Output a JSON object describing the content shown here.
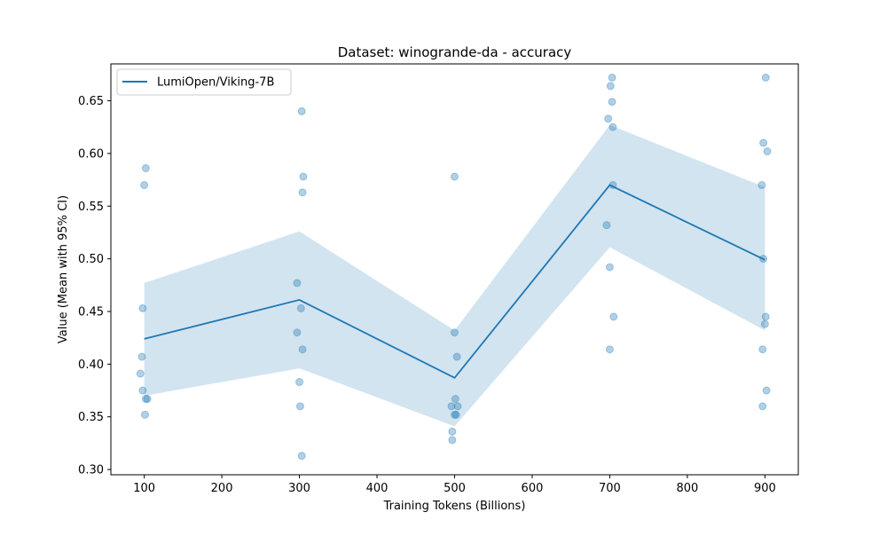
{
  "chart_data": {
    "type": "line",
    "title": "Dataset: winogrande-da - accuracy",
    "xlabel": "Training Tokens (Billions)",
    "ylabel": "Value (Mean with 95% CI)",
    "xlim": [
      57,
      943
    ],
    "ylim": [
      0.295,
      0.685
    ],
    "xticks": [
      100,
      200,
      300,
      400,
      500,
      600,
      700,
      800,
      900
    ],
    "yticks": [
      0.3,
      0.35,
      0.4,
      0.45,
      0.5,
      0.55,
      0.6,
      0.65
    ],
    "legend_position": "top-left",
    "grid": false,
    "colors": {
      "line": "#1f77b4",
      "band": "#1f77b4",
      "points": "#1f77b4"
    },
    "series": [
      {
        "name": "LumiOpen/Viking-7B",
        "x": [
          100,
          300,
          500,
          700,
          900
        ],
        "mean": [
          0.424,
          0.461,
          0.387,
          0.57,
          0.499
        ],
        "ci_low": [
          0.37,
          0.396,
          0.341,
          0.511,
          0.432
        ],
        "ci_high": [
          0.477,
          0.526,
          0.432,
          0.627,
          0.568
        ]
      }
    ],
    "scatter_points": [
      {
        "x": 102,
        "y": 0.586
      },
      {
        "x": 100,
        "y": 0.57
      },
      {
        "x": 98,
        "y": 0.453
      },
      {
        "x": 97,
        "y": 0.407
      },
      {
        "x": 95,
        "y": 0.391
      },
      {
        "x": 98,
        "y": 0.375
      },
      {
        "x": 102,
        "y": 0.367
      },
      {
        "x": 104,
        "y": 0.367
      },
      {
        "x": 101,
        "y": 0.352
      },
      {
        "x": 303,
        "y": 0.64
      },
      {
        "x": 305,
        "y": 0.578
      },
      {
        "x": 304,
        "y": 0.563
      },
      {
        "x": 297,
        "y": 0.477
      },
      {
        "x": 302,
        "y": 0.453
      },
      {
        "x": 297,
        "y": 0.43
      },
      {
        "x": 304,
        "y": 0.414
      },
      {
        "x": 300,
        "y": 0.383
      },
      {
        "x": 301,
        "y": 0.36
      },
      {
        "x": 303,
        "y": 0.313
      },
      {
        "x": 500,
        "y": 0.578
      },
      {
        "x": 500,
        "y": 0.43
      },
      {
        "x": 503,
        "y": 0.407
      },
      {
        "x": 501,
        "y": 0.367
      },
      {
        "x": 496,
        "y": 0.36
      },
      {
        "x": 504,
        "y": 0.36
      },
      {
        "x": 500,
        "y": 0.352
      },
      {
        "x": 502,
        "y": 0.352
      },
      {
        "x": 497,
        "y": 0.336
      },
      {
        "x": 497,
        "y": 0.328
      },
      {
        "x": 703,
        "y": 0.672
      },
      {
        "x": 701,
        "y": 0.664
      },
      {
        "x": 703,
        "y": 0.649
      },
      {
        "x": 698,
        "y": 0.633
      },
      {
        "x": 704,
        "y": 0.625
      },
      {
        "x": 704,
        "y": 0.57
      },
      {
        "x": 696,
        "y": 0.532
      },
      {
        "x": 700,
        "y": 0.492
      },
      {
        "x": 705,
        "y": 0.445
      },
      {
        "x": 700,
        "y": 0.414
      },
      {
        "x": 901,
        "y": 0.672
      },
      {
        "x": 898,
        "y": 0.61
      },
      {
        "x": 903,
        "y": 0.602
      },
      {
        "x": 896,
        "y": 0.57
      },
      {
        "x": 898,
        "y": 0.5
      },
      {
        "x": 901,
        "y": 0.445
      },
      {
        "x": 900,
        "y": 0.438
      },
      {
        "x": 897,
        "y": 0.414
      },
      {
        "x": 902,
        "y": 0.375
      },
      {
        "x": 897,
        "y": 0.36
      }
    ]
  }
}
